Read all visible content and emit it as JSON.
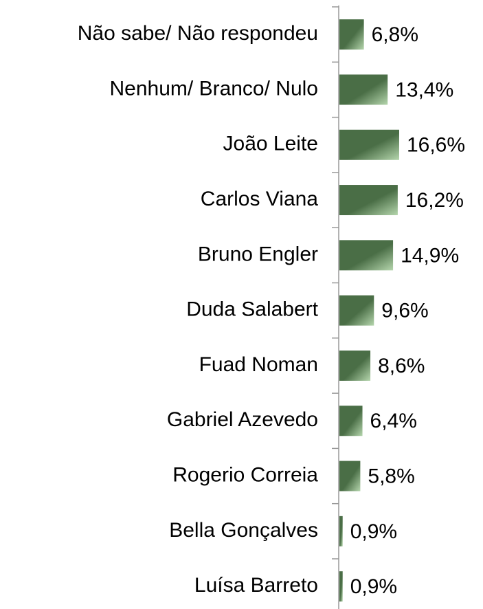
{
  "chart_data": {
    "type": "bar",
    "orientation": "horizontal",
    "categories": [
      "Não sabe/ Não respondeu",
      "Nenhum/ Branco/ Nulo",
      "João Leite",
      "Carlos Viana",
      "Bruno Engler",
      "Duda Salabert",
      "Fuad Noman",
      "Gabriel Azevedo",
      "Rogerio Correia",
      "Bella Gonçalves",
      "Luísa Barreto"
    ],
    "values": [
      6.8,
      13.4,
      16.6,
      16.2,
      14.9,
      9.6,
      8.6,
      6.4,
      5.8,
      0.9,
      0.9
    ],
    "value_labels": [
      "6,8%",
      "13,4%",
      "16,6%",
      "16,2%",
      "14,9%",
      "9,6%",
      "8,6%",
      "6,4%",
      "5,8%",
      "0,9%",
      "0,9%"
    ],
    "color": "#4a6e46"
  }
}
